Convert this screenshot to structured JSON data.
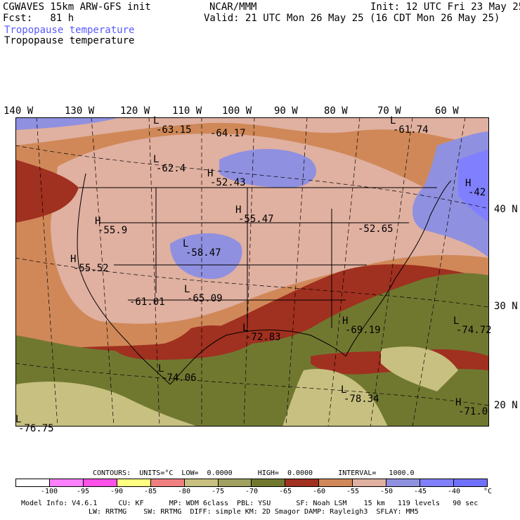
{
  "header": {
    "left_line1": "CGWAVES 15km ARW-GFS init",
    "left_line2": "Fcst:   81 h",
    "center": "NCAR/MMM",
    "right_line1": "Init: 12 UTC Fri 23 May 25",
    "right_line2": "Valid: 21 UTC Mon 26 May 25 (16 CDT Mon 26 May 25)",
    "field_name_1": "Tropopause temperature",
    "field_name_2": "Tropopause temperature"
  },
  "longitudes": [
    "140 W",
    "130 W",
    "120 W",
    "110 W",
    "100 W",
    "90 W",
    "80 W",
    "70 W",
    "60 W"
  ],
  "latitudes": [
    "40 N",
    "30 N",
    "20 N"
  ],
  "map_labels": [
    {
      "mark": "L",
      "value": "-63.15"
    },
    {
      "mark": "",
      "value": "-64.17"
    },
    {
      "mark": "L",
      "value": "-61.74"
    },
    {
      "mark": "L",
      "value": "-62.4"
    },
    {
      "mark": "H",
      "value": "-52.43"
    },
    {
      "mark": "H",
      "value": "-42"
    },
    {
      "mark": "H",
      "value": "-55.9"
    },
    {
      "mark": "H",
      "value": "-55.47"
    },
    {
      "mark": "",
      "value": "-52.65"
    },
    {
      "mark": "L",
      "value": "-58.47"
    },
    {
      "mark": "H",
      "value": "-55.52"
    },
    {
      "mark": "",
      "value": "-61.01"
    },
    {
      "mark": "L",
      "value": "-65.09"
    },
    {
      "mark": "L",
      "value": "-72.83"
    },
    {
      "mark": "H",
      "value": "-69.19"
    },
    {
      "mark": "L",
      "value": "-74.72"
    },
    {
      "mark": "L",
      "value": "-74.06"
    },
    {
      "mark": "L",
      "value": "-78.34"
    },
    {
      "mark": "H",
      "value": "-71.0"
    },
    {
      "mark": "L",
      "value": "-76.75"
    }
  ],
  "legend_info": {
    "contours": "CONTOURS:  UNITS=°C  LOW=  0.0000      HIGH=  0.0000      INTERVAL=   1000.0",
    "ticks": [
      "-100",
      "-95",
      "-90",
      "-85",
      "-80",
      "-75",
      "-70",
      "-65",
      "-60",
      "-55",
      "-50",
      "-45",
      "-40",
      "°C"
    ],
    "colors": [
      "#ffffff",
      "#ff80ff",
      "#ff50e8",
      "#ffff80",
      "#f08080",
      "#c8c080",
      "#a0a060",
      "#707830",
      "#a03020",
      "#d08858",
      "#e0b0a0",
      "#9090e0",
      "#8080ff",
      "#7070ff"
    ]
  },
  "footer": {
    "line1": "Model Info: V4.6.1     CU: KF      MP: WDM 6class  PBL: YSU      SF: Noah LSM    15 km   119 levels   90 sec",
    "line2": "LW: RRTMG    SW: RRTMG  DIFF: simple KM: 2D Smagor DAMP: Rayleigh3  SFLAY: MM5"
  }
}
